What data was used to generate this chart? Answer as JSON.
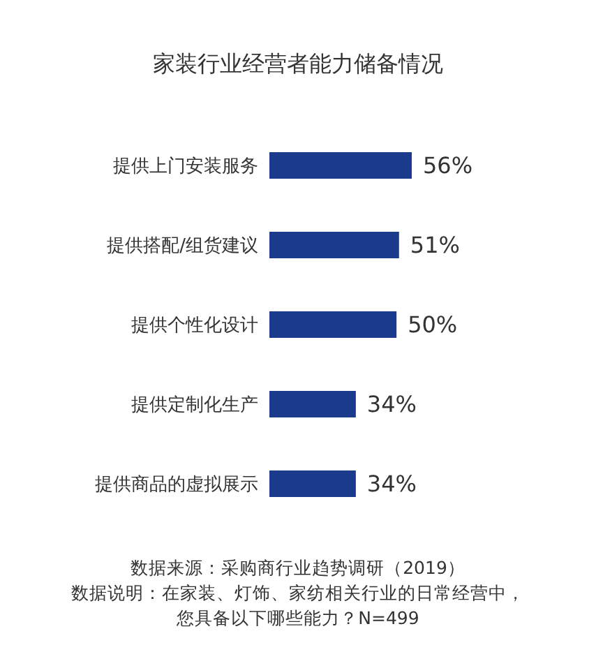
{
  "chart_data": {
    "type": "bar",
    "orientation": "horizontal",
    "title": "家装行业经营者能力储备情况",
    "categories": [
      "提供上门安装服务",
      "提供搭配/组货建议",
      "提供个性化设计",
      "提供定制化生产",
      "提供商品的虚拟展示"
    ],
    "values": [
      56,
      51,
      50,
      34,
      34
    ],
    "value_labels": [
      "56%",
      "51%",
      "50%",
      "34%",
      "34%"
    ],
    "color": "#1b3a8c",
    "annotations": [
      "数据来源：采购商行业趋势调研（2019）",
      "数据说明：在家装、灯饰、家纺相关行业的日常经营中，",
      "您具备以下哪些能力？N=499"
    ]
  }
}
